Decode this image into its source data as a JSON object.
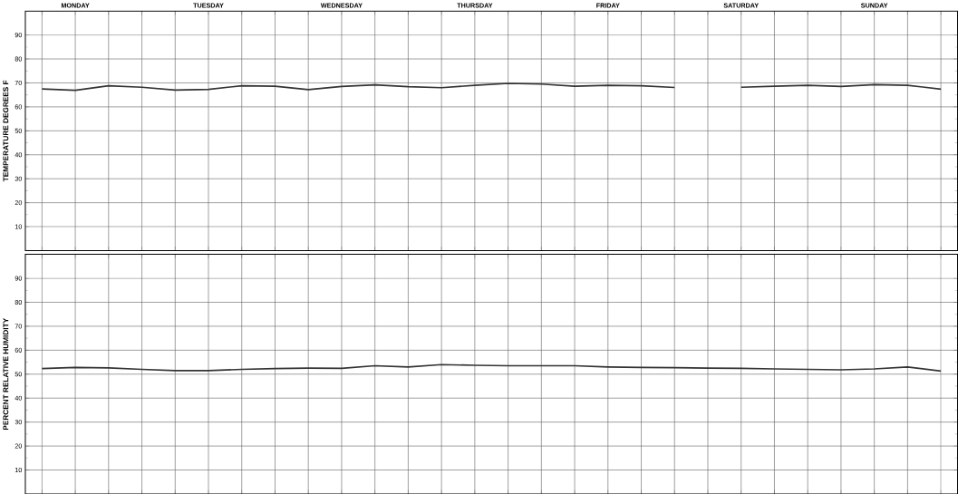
{
  "chart_data": [
    {
      "type": "line",
      "ylabel": "TEMPERATURE DEGREES F",
      "ylim": [
        0,
        100
      ],
      "grid": true,
      "categories": [
        null,
        "MONDAY",
        null,
        null,
        null,
        "TUESDAY",
        null,
        null,
        null,
        "WEDNESDAY",
        null,
        null,
        null,
        "THURSDAY",
        null,
        null,
        null,
        "FRIDAY",
        null,
        null,
        null,
        "SATURDAY",
        null,
        null,
        null,
        "SUNDAY",
        null,
        null
      ],
      "yticks": [
        10,
        20,
        30,
        40,
        50,
        60,
        70,
        80,
        90
      ],
      "series": [
        {
          "color": "#333333",
          "values": [
            67.5,
            66.9,
            68.8,
            68.2,
            67,
            67.3,
            68.8,
            68.6,
            67.2,
            68.5,
            69.2,
            68.4,
            68,
            69,
            69.8,
            69.5,
            68.6,
            69,
            68.8,
            68.1,
            null,
            68.2,
            68.6,
            69,
            68.5,
            69.3,
            69,
            67.4
          ]
        }
      ]
    },
    {
      "type": "line",
      "ylabel": "PERCENT RELATIVE HUMIDITY",
      "ylim": [
        0,
        100
      ],
      "grid": true,
      "tick_labels": "y",
      "categories": [
        null,
        null,
        null,
        null,
        null,
        null,
        null,
        null,
        null,
        null,
        null,
        null,
        null,
        null,
        null,
        null,
        null,
        null,
        null,
        null,
        null,
        null,
        null,
        null,
        null,
        null,
        null,
        null
      ],
      "yticks": [
        10,
        20,
        30,
        40,
        50,
        60,
        70,
        80,
        90
      ],
      "series": [
        {
          "color": "#333333",
          "values": [
            52.3,
            52.8,
            52.6,
            52,
            51.5,
            51.5,
            52,
            52.3,
            52.5,
            52.4,
            53.5,
            53,
            54,
            53.7,
            53.5,
            53.5,
            53.5,
            53,
            52.8,
            52.7,
            52.5,
            52.4,
            52.2,
            52,
            51.8,
            52.2,
            53,
            51.3
          ]
        }
      ]
    }
  ]
}
